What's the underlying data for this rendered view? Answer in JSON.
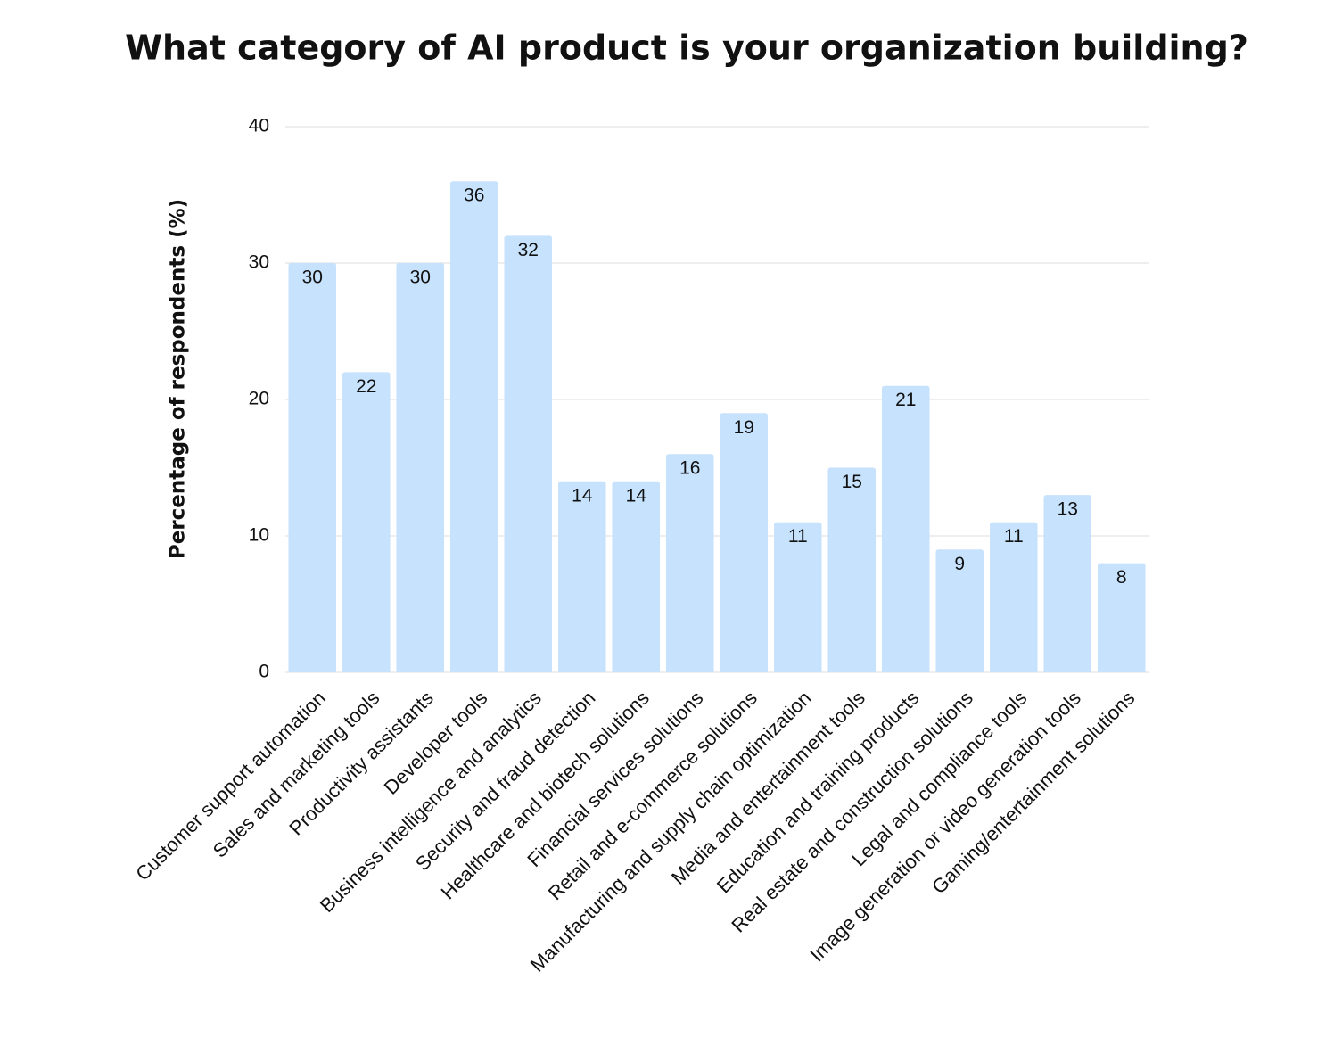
{
  "chart_data": {
    "type": "bar",
    "title": "What category of AI product is your organization building?",
    "y_label": "Percentage of respondents (%)",
    "categories": [
      "Customer support automation",
      "Sales and marketing tools",
      "Productivity assistants",
      "Developer tools",
      "Business intelligence and analytics",
      "Security and fraud detection",
      "Healthcare and biotech solutions",
      "Financial services solutions",
      "Retail and e-commerce solutions",
      "Manufacturing and supply chain optimization",
      "Media and entertainment tools",
      "Education and training products",
      "Real estate and construction solutions",
      "Legal and compliance tools",
      "Image generation or video generation tools",
      "Gaming/entertainment solutions"
    ],
    "values": [
      30,
      22,
      30,
      36,
      32,
      14,
      14,
      16,
      19,
      11,
      15,
      21,
      9,
      11,
      13,
      8
    ],
    "color": "#c6e2fd",
    "ylim": [
      0,
      40
    ],
    "yticks": [
      0,
      10,
      20,
      30,
      40
    ],
    "grid": true
  }
}
